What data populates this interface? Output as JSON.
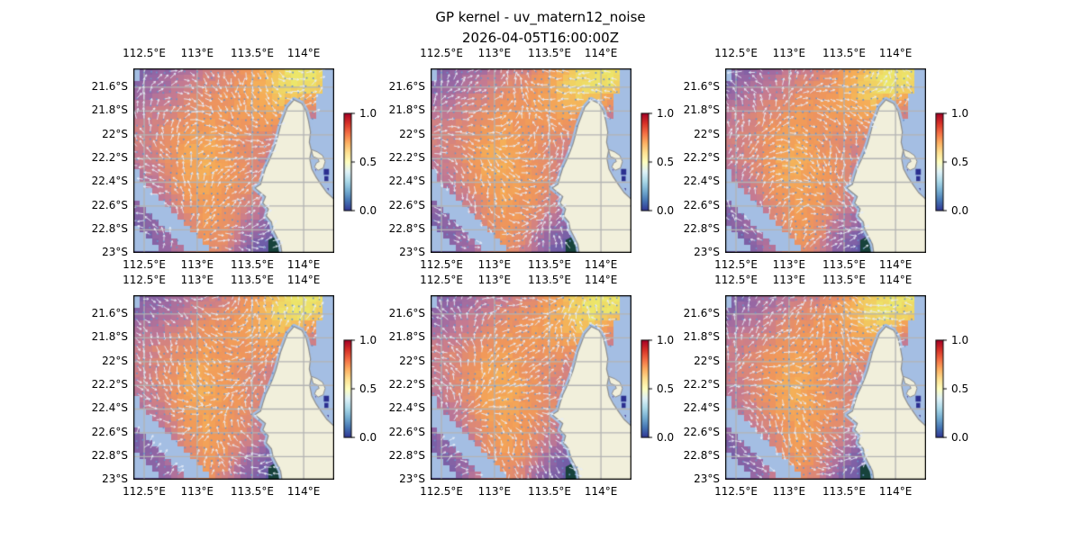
{
  "figure": {
    "title": "GP kernel - uv_matern12_noise",
    "subtitle": "2026-04-05T16:00:00Z",
    "background": "#ffffff"
  },
  "chart_data": {
    "type": "heatmap",
    "description": "2x3 grid of geographic map subplots (ocean scalar field 0-1 with quiver vector overlay) around North West Cape, Western Australia; all six panels show near-identical fields",
    "grid_layout": {
      "rows": 2,
      "cols": 3
    },
    "x_ticks": {
      "labels": [
        "112.5°E",
        "113°E",
        "113.5°E",
        "114°E"
      ],
      "fracs": [
        0.054,
        0.318,
        0.592,
        0.848
      ],
      "shown_top": true,
      "shown_bottom": true
    },
    "y_ticks": {
      "labels": [
        "21.6°S",
        "21.8°S",
        "22°S",
        "22.2°S",
        "22.4°S",
        "22.6°S",
        "22.8°S",
        "23°S"
      ],
      "fracs": [
        0.102,
        0.231,
        0.36,
        0.489,
        0.617,
        0.746,
        0.875,
        1.0
      ]
    },
    "colorbar": {
      "labels": [
        "1.0",
        "0.5",
        "0.0"
      ],
      "fracs": [
        0.0,
        0.5,
        1.0
      ],
      "min": 0.0,
      "max": 1.0,
      "colormap": "RdYlBu_r",
      "stops": [
        [
          0.0,
          "#313695"
        ],
        [
          0.1,
          "#4575b4"
        ],
        [
          0.2,
          "#74add1"
        ],
        [
          0.3,
          "#abd9e9"
        ],
        [
          0.4,
          "#e0f3f8"
        ],
        [
          0.5,
          "#ffffbf"
        ],
        [
          0.6,
          "#fee090"
        ],
        [
          0.7,
          "#fdae61"
        ],
        [
          0.8,
          "#f46d43"
        ],
        [
          0.9,
          "#d73027"
        ],
        [
          1.0,
          "#a50026"
        ]
      ]
    },
    "field": {
      "cols": 12,
      "rows": 11,
      "values": [
        [
          0.26,
          0.33,
          0.4,
          0.46,
          0.52,
          0.56,
          0.66,
          0.8,
          0.92,
          1.0,
          1.0,
          0.96
        ],
        [
          0.34,
          0.42,
          0.48,
          0.54,
          0.62,
          0.66,
          0.73,
          0.85,
          0.95,
          1.0,
          0.96,
          0.88
        ],
        [
          0.46,
          0.5,
          0.56,
          0.63,
          0.7,
          0.72,
          0.75,
          0.8,
          0.85,
          0.8,
          0.62,
          0.52
        ],
        [
          0.54,
          0.57,
          0.63,
          0.7,
          0.75,
          0.72,
          0.7,
          0.72,
          0.7,
          0.56,
          0.42,
          0.36
        ],
        [
          0.55,
          0.58,
          0.66,
          0.78,
          0.8,
          0.73,
          0.66,
          0.61,
          0.55,
          0.43,
          0.32,
          0.3
        ],
        [
          0.5,
          0.56,
          0.66,
          0.8,
          0.82,
          0.75,
          0.66,
          0.58,
          0.48,
          0.36,
          0.26,
          0.23
        ],
        [
          0.44,
          0.51,
          0.62,
          0.78,
          0.8,
          0.75,
          0.68,
          0.6,
          0.46,
          0.29,
          0.19,
          0.16
        ],
        [
          0.36,
          0.46,
          0.56,
          0.7,
          0.78,
          0.73,
          0.65,
          0.55,
          0.39,
          0.23,
          0.13,
          0.1
        ],
        [
          0.31,
          0.39,
          0.49,
          0.63,
          0.76,
          0.7,
          0.58,
          0.46,
          0.31,
          0.16,
          0.09,
          0.07
        ],
        [
          0.26,
          0.33,
          0.43,
          0.59,
          0.72,
          0.66,
          0.46,
          0.33,
          0.23,
          0.11,
          0.06,
          0.05
        ],
        [
          0.23,
          0.29,
          0.39,
          0.56,
          0.69,
          0.56,
          0.36,
          0.26,
          0.16,
          0.09,
          0.05,
          0.04
        ]
      ],
      "palette": [
        [
          0.0,
          "#2c2f8f"
        ],
        [
          0.12,
          "#4a4a9e"
        ],
        [
          0.25,
          "#6b5ca8"
        ],
        [
          0.4,
          "#9a68a3"
        ],
        [
          0.52,
          "#c47a92"
        ],
        [
          0.62,
          "#e08a72"
        ],
        [
          0.72,
          "#f0975a"
        ],
        [
          0.82,
          "#f5ab57"
        ],
        [
          0.9,
          "#f2c95f"
        ],
        [
          1.0,
          "#ece66a"
        ]
      ]
    },
    "map": {
      "land_color": "#f1efdb",
      "coast_color": "#8f8f8f",
      "shallow_color": "#a4bee3",
      "grid_color": "#b3b3b3",
      "teal_color": "#17423b",
      "navy_color": "#2b2f8f",
      "arrow_color": "#e7edf8",
      "dot_color": "#6a92c8",
      "land_polygon": [
        [
          0.8,
          0.17
        ],
        [
          0.838,
          0.19
        ],
        [
          0.86,
          0.232
        ],
        [
          0.872,
          0.285
        ],
        [
          0.882,
          0.345
        ],
        [
          0.876,
          0.4
        ],
        [
          0.886,
          0.445
        ],
        [
          0.878,
          0.49
        ],
        [
          0.888,
          0.545
        ],
        [
          0.91,
          0.59
        ],
        [
          0.938,
          0.635
        ],
        [
          0.962,
          0.672
        ],
        [
          1.0,
          0.71
        ],
        [
          1.0,
          1.0
        ],
        [
          0.74,
          1.0
        ],
        [
          0.733,
          0.952
        ],
        [
          0.713,
          0.91
        ],
        [
          0.695,
          0.872
        ],
        [
          0.688,
          0.833
        ],
        [
          0.662,
          0.8
        ],
        [
          0.672,
          0.762
        ],
        [
          0.645,
          0.73
        ],
        [
          0.658,
          0.695
        ],
        [
          0.628,
          0.668
        ],
        [
          0.606,
          0.648
        ],
        [
          0.634,
          0.628
        ],
        [
          0.645,
          0.585
        ],
        [
          0.658,
          0.54
        ],
        [
          0.678,
          0.495
        ],
        [
          0.695,
          0.45
        ],
        [
          0.71,
          0.405
        ],
        [
          0.722,
          0.358
        ],
        [
          0.733,
          0.31
        ],
        [
          0.752,
          0.255
        ],
        [
          0.768,
          0.21
        ]
      ],
      "hook_polygon": [
        [
          0.886,
          0.44
        ],
        [
          0.915,
          0.452
        ],
        [
          0.942,
          0.472
        ],
        [
          0.955,
          0.505
        ],
        [
          0.945,
          0.54
        ],
        [
          0.92,
          0.552
        ],
        [
          0.902,
          0.535
        ],
        [
          0.912,
          0.512
        ],
        [
          0.925,
          0.505
        ],
        [
          0.918,
          0.488
        ],
        [
          0.895,
          0.478
        ]
      ],
      "mask_polygons": [
        [
          [
            0.0,
            0.595
          ],
          [
            0.065,
            0.645
          ],
          [
            0.135,
            0.705
          ],
          [
            0.205,
            0.775
          ],
          [
            0.285,
            0.86
          ],
          [
            0.355,
            0.94
          ],
          [
            0.405,
            1.0
          ],
          [
            0.27,
            1.0
          ],
          [
            0.225,
            0.935
          ],
          [
            0.15,
            0.855
          ],
          [
            0.075,
            0.775
          ],
          [
            0.0,
            0.72
          ]
        ],
        [
          [
            0.0,
            0.835
          ],
          [
            0.075,
            0.905
          ],
          [
            0.16,
            1.0
          ],
          [
            0.0,
            1.0
          ]
        ],
        [
          [
            0.0,
            0.545
          ],
          [
            0.038,
            0.545
          ],
          [
            0.038,
            0.607
          ],
          [
            0.0,
            0.607
          ]
        ],
        [
          [
            0.945,
            0.085
          ],
          [
            1.0,
            0.085
          ],
          [
            1.0,
            0.705
          ],
          [
            0.965,
            0.672
          ],
          [
            0.935,
            0.625
          ],
          [
            0.905,
            0.578
          ],
          [
            0.89,
            0.53
          ],
          [
            0.885,
            0.47
          ],
          [
            0.882,
            0.41
          ],
          [
            0.886,
            0.33
          ],
          [
            0.902,
            0.2
          ],
          [
            0.93,
            0.12
          ]
        ],
        [
          [
            0.935,
            0.0
          ],
          [
            1.0,
            0.0
          ],
          [
            1.0,
            0.082
          ],
          [
            0.935,
            0.082
          ]
        ],
        [
          [
            0.0,
            0.0
          ],
          [
            0.028,
            0.0
          ],
          [
            0.028,
            0.075
          ],
          [
            0.0,
            0.075
          ]
        ]
      ],
      "teal_patch": [
        [
          0.672,
          0.93
        ],
        [
          0.735,
          0.895
        ],
        [
          0.76,
          0.99
        ],
        [
          0.755,
          1.0
        ],
        [
          0.672,
          1.0
        ]
      ],
      "navy_cells": [
        [
          0.948,
          0.545,
          0.026,
          0.032
        ],
        [
          0.951,
          0.584,
          0.02,
          0.027
        ]
      ]
    },
    "vector_overlay": {
      "style": "quiver",
      "spacing_px": 7.5,
      "dot_fraction": 0.32
    },
    "subplots": [
      {
        "id": "r1c1",
        "seed": 3
      },
      {
        "id": "r1c2",
        "seed": 17
      },
      {
        "id": "r1c3",
        "seed": 29
      },
      {
        "id": "r2c1",
        "seed": 41
      },
      {
        "id": "r2c2",
        "seed": 53
      },
      {
        "id": "r2c3",
        "seed": 67
      }
    ]
  }
}
